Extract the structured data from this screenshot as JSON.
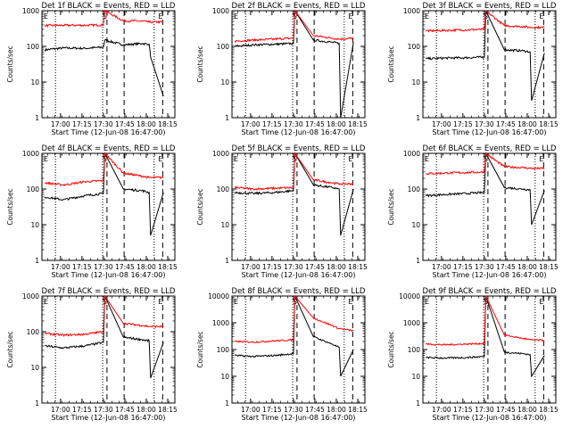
{
  "colors": {
    "events": "#000000",
    "lld": "#ff0000",
    "background": "#ffffff"
  },
  "ylabel": "Counts/sec",
  "xlabel": "Start Time (12-Jun-08 16:47:00)",
  "x_tick_labels": [
    "17:00",
    "17:15",
    "17:30",
    "17:45",
    "18:00",
    "18:15"
  ],
  "y_tick_labels": [
    "1",
    "10",
    "100",
    "1000"
  ],
  "y_tick_labels_alt": [
    "1",
    "10",
    "100",
    "1000",
    "10000"
  ],
  "markers": {
    "start": "S",
    "end": "E"
  },
  "chart_data": [
    {
      "type": "line",
      "title": "Det 1f BLACK = Events, RED = LLD",
      "yscale": "log",
      "ylim": [
        1,
        1000
      ],
      "xlim_minutes": [
        0,
        93
      ],
      "series": [
        {
          "name": "Events",
          "x": [
            2,
            15,
            30,
            43,
            44,
            57,
            70,
            75,
            76,
            85
          ],
          "y": [
            80,
            90,
            88,
            95,
            150,
            110,
            120,
            115,
            50,
            4
          ]
        },
        {
          "name": "LLD",
          "x": [
            2,
            15,
            30,
            43,
            44,
            57,
            70,
            75,
            76,
            85
          ],
          "y": [
            380,
            390,
            390,
            400,
            1000,
            520,
            510,
            480,
            480,
            480
          ]
        }
      ]
    },
    {
      "type": "line",
      "title": "Det 2f BLACK = Events, RED = LLD",
      "yscale": "log",
      "ylim": [
        1,
        1000
      ],
      "xlim_minutes": [
        0,
        93
      ],
      "series": [
        {
          "name": "Events",
          "x": [
            2,
            15,
            30,
            43,
            44,
            57,
            70,
            75,
            76,
            85
          ],
          "y": [
            100,
            110,
            115,
            120,
            1000,
            150,
            130,
            120,
            1,
            130
          ]
        },
        {
          "name": "LLD",
          "x": [
            2,
            15,
            30,
            43,
            44,
            57,
            70,
            75,
            76,
            85
          ],
          "y": [
            140,
            150,
            160,
            170,
            1000,
            200,
            170,
            160,
            160,
            170
          ]
        }
      ]
    },
    {
      "type": "line",
      "title": "Det 3f BLACK = Events, RED = LLD",
      "yscale": "log",
      "ylim": [
        1,
        1000
      ],
      "xlim_minutes": [
        0,
        93
      ],
      "series": [
        {
          "name": "Events",
          "x": [
            2,
            15,
            30,
            43,
            44,
            57,
            70,
            75,
            76,
            85
          ],
          "y": [
            45,
            47,
            48,
            50,
            1000,
            80,
            75,
            70,
            3,
            65
          ]
        },
        {
          "name": "LLD",
          "x": [
            2,
            15,
            30,
            43,
            44,
            57,
            70,
            75,
            76,
            85
          ],
          "y": [
            270,
            280,
            290,
            300,
            1000,
            380,
            360,
            340,
            340,
            340
          ]
        }
      ]
    },
    {
      "type": "line",
      "title": "Det 4f BLACK = Events, RED = LLD",
      "yscale": "log",
      "ylim": [
        1,
        1000
      ],
      "xlim_minutes": [
        0,
        93
      ],
      "series": [
        {
          "name": "Events",
          "x": [
            2,
            15,
            30,
            43,
            44,
            57,
            70,
            75,
            76,
            85
          ],
          "y": [
            60,
            50,
            65,
            75,
            1000,
            100,
            90,
            80,
            5,
            80
          ]
        },
        {
          "name": "LLD",
          "x": [
            2,
            15,
            30,
            43,
            44,
            57,
            70,
            75,
            76,
            85
          ],
          "y": [
            150,
            130,
            160,
            170,
            1000,
            280,
            230,
            210,
            210,
            210
          ]
        }
      ]
    },
    {
      "type": "line",
      "title": "Det 5f BLACK = Events, RED = LLD",
      "yscale": "log",
      "ylim": [
        1,
        1000
      ],
      "xlim_minutes": [
        0,
        93
      ],
      "series": [
        {
          "name": "Events",
          "x": [
            2,
            15,
            30,
            43,
            44,
            57,
            70,
            75,
            76,
            85
          ],
          "y": [
            80,
            75,
            80,
            90,
            1000,
            130,
            110,
            100,
            5,
            100
          ]
        },
        {
          "name": "LLD",
          "x": [
            2,
            15,
            30,
            43,
            44,
            57,
            70,
            75,
            76,
            85
          ],
          "y": [
            110,
            100,
            105,
            110,
            1000,
            180,
            150,
            140,
            140,
            140
          ]
        }
      ]
    },
    {
      "type": "line",
      "title": "Det 6f BLACK = Events, RED = LLD",
      "yscale": "log",
      "ylim": [
        1,
        1000
      ],
      "xlim_minutes": [
        0,
        93
      ],
      "series": [
        {
          "name": "Events",
          "x": [
            2,
            15,
            30,
            43,
            44,
            57,
            70,
            75,
            76,
            85
          ],
          "y": [
            65,
            70,
            75,
            80,
            1000,
            110,
            100,
            95,
            10,
            90
          ]
        },
        {
          "name": "LLD",
          "x": [
            2,
            15,
            30,
            43,
            44,
            57,
            70,
            75,
            76,
            85
          ],
          "y": [
            270,
            280,
            290,
            300,
            1000,
            420,
            400,
            380,
            380,
            380
          ]
        }
      ]
    },
    {
      "type": "line",
      "title": "Det 7f BLACK = Events, RED = LLD",
      "yscale": "log",
      "ylim": [
        1,
        1000
      ],
      "xlim_minutes": [
        0,
        93
      ],
      "series": [
        {
          "name": "Events",
          "x": [
            2,
            15,
            30,
            43,
            44,
            57,
            70,
            75,
            76,
            85
          ],
          "y": [
            40,
            35,
            40,
            50,
            1000,
            70,
            60,
            55,
            5,
            50
          ]
        },
        {
          "name": "LLD",
          "x": [
            2,
            15,
            30,
            43,
            44,
            57,
            70,
            75,
            76,
            85
          ],
          "y": [
            90,
            80,
            85,
            100,
            1000,
            170,
            150,
            140,
            140,
            140
          ]
        }
      ]
    },
    {
      "type": "line",
      "title": "Det 8f BLACK = Events, RED = LLD",
      "yscale": "log",
      "ylim": [
        1,
        10000
      ],
      "xlim_minutes": [
        0,
        93
      ],
      "series": [
        {
          "name": "Events",
          "x": [
            2,
            15,
            30,
            43,
            44,
            57,
            70,
            75,
            76,
            85
          ],
          "y": [
            60,
            55,
            60,
            70,
            10000,
            300,
            160,
            120,
            10,
            100
          ]
        },
        {
          "name": "LLD",
          "x": [
            2,
            15,
            30,
            43,
            44,
            57,
            70,
            75,
            76,
            85
          ],
          "y": [
            200,
            190,
            210,
            230,
            10000,
            1500,
            800,
            600,
            600,
            500
          ]
        }
      ]
    },
    {
      "type": "line",
      "title": "Det 9f BLACK = Events, RED = LLD",
      "yscale": "log",
      "ylim": [
        1,
        10000
      ],
      "xlim_minutes": [
        0,
        93
      ],
      "series": [
        {
          "name": "Events",
          "x": [
            2,
            15,
            30,
            43,
            44,
            57,
            70,
            75,
            76,
            85
          ],
          "y": [
            50,
            48,
            50,
            55,
            10000,
            80,
            70,
            65,
            10,
            60
          ]
        },
        {
          "name": "LLD",
          "x": [
            2,
            15,
            30,
            43,
            44,
            57,
            70,
            75,
            76,
            85
          ],
          "y": [
            160,
            150,
            160,
            170,
            10000,
            350,
            260,
            230,
            230,
            220
          ]
        }
      ]
    }
  ]
}
